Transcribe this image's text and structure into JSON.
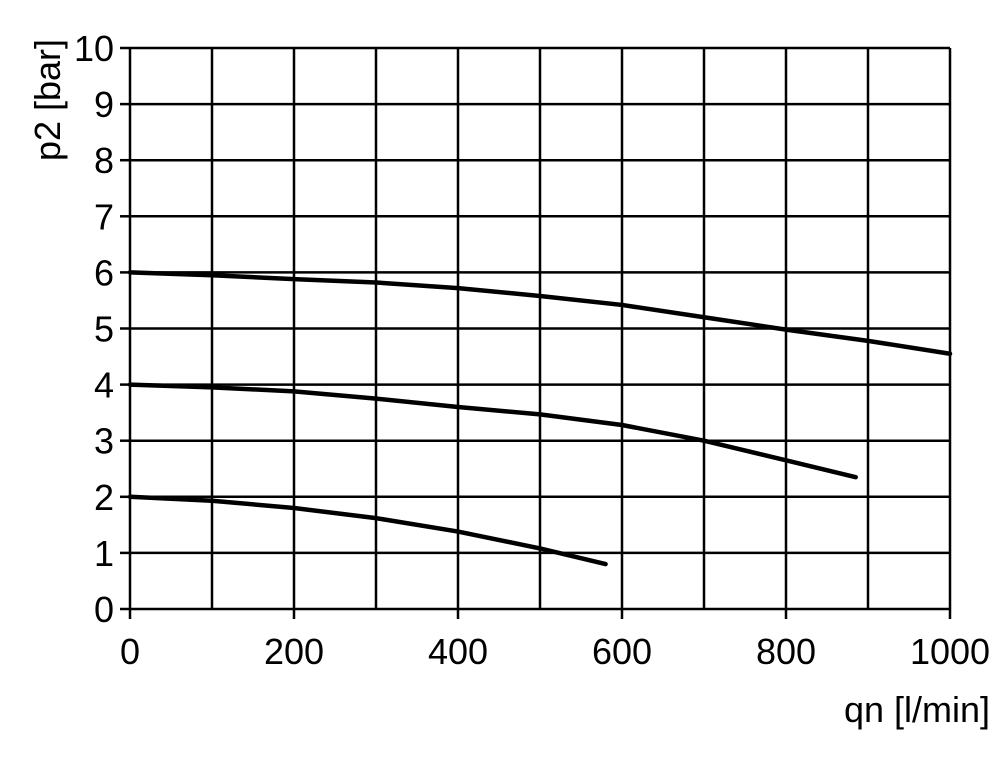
{
  "chart_data": {
    "type": "line",
    "ylabel": "p2 [bar]",
    "xlabel": "qn [l/min]",
    "xlim": [
      0,
      1000
    ],
    "xticks": [
      0,
      200,
      400,
      600,
      800,
      1000
    ],
    "xminor": [
      100,
      300,
      500,
      700,
      900
    ],
    "ylim": [
      0,
      10
    ],
    "yticks": [
      0,
      1,
      2,
      3,
      4,
      5,
      6,
      7,
      8,
      9,
      10
    ],
    "grid": true,
    "grid_color": "#000000",
    "series": [
      {
        "color": "#000000",
        "x": [
          0,
          100,
          200,
          300,
          400,
          500,
          600,
          700,
          800,
          900,
          1000
        ],
        "values": [
          6.0,
          5.95,
          5.88,
          5.82,
          5.72,
          5.58,
          5.42,
          5.2,
          4.98,
          4.78,
          4.55
        ]
      },
      {
        "color": "#000000",
        "x": [
          0,
          100,
          200,
          300,
          400,
          500,
          600,
          700,
          800,
          885
        ],
        "values": [
          4.0,
          3.95,
          3.88,
          3.75,
          3.6,
          3.47,
          3.28,
          3.0,
          2.65,
          2.35
        ]
      },
      {
        "color": "#000000",
        "x": [
          0,
          100,
          200,
          300,
          400,
          500,
          580
        ],
        "values": [
          2.0,
          1.93,
          1.8,
          1.62,
          1.38,
          1.08,
          0.8
        ]
      }
    ]
  }
}
